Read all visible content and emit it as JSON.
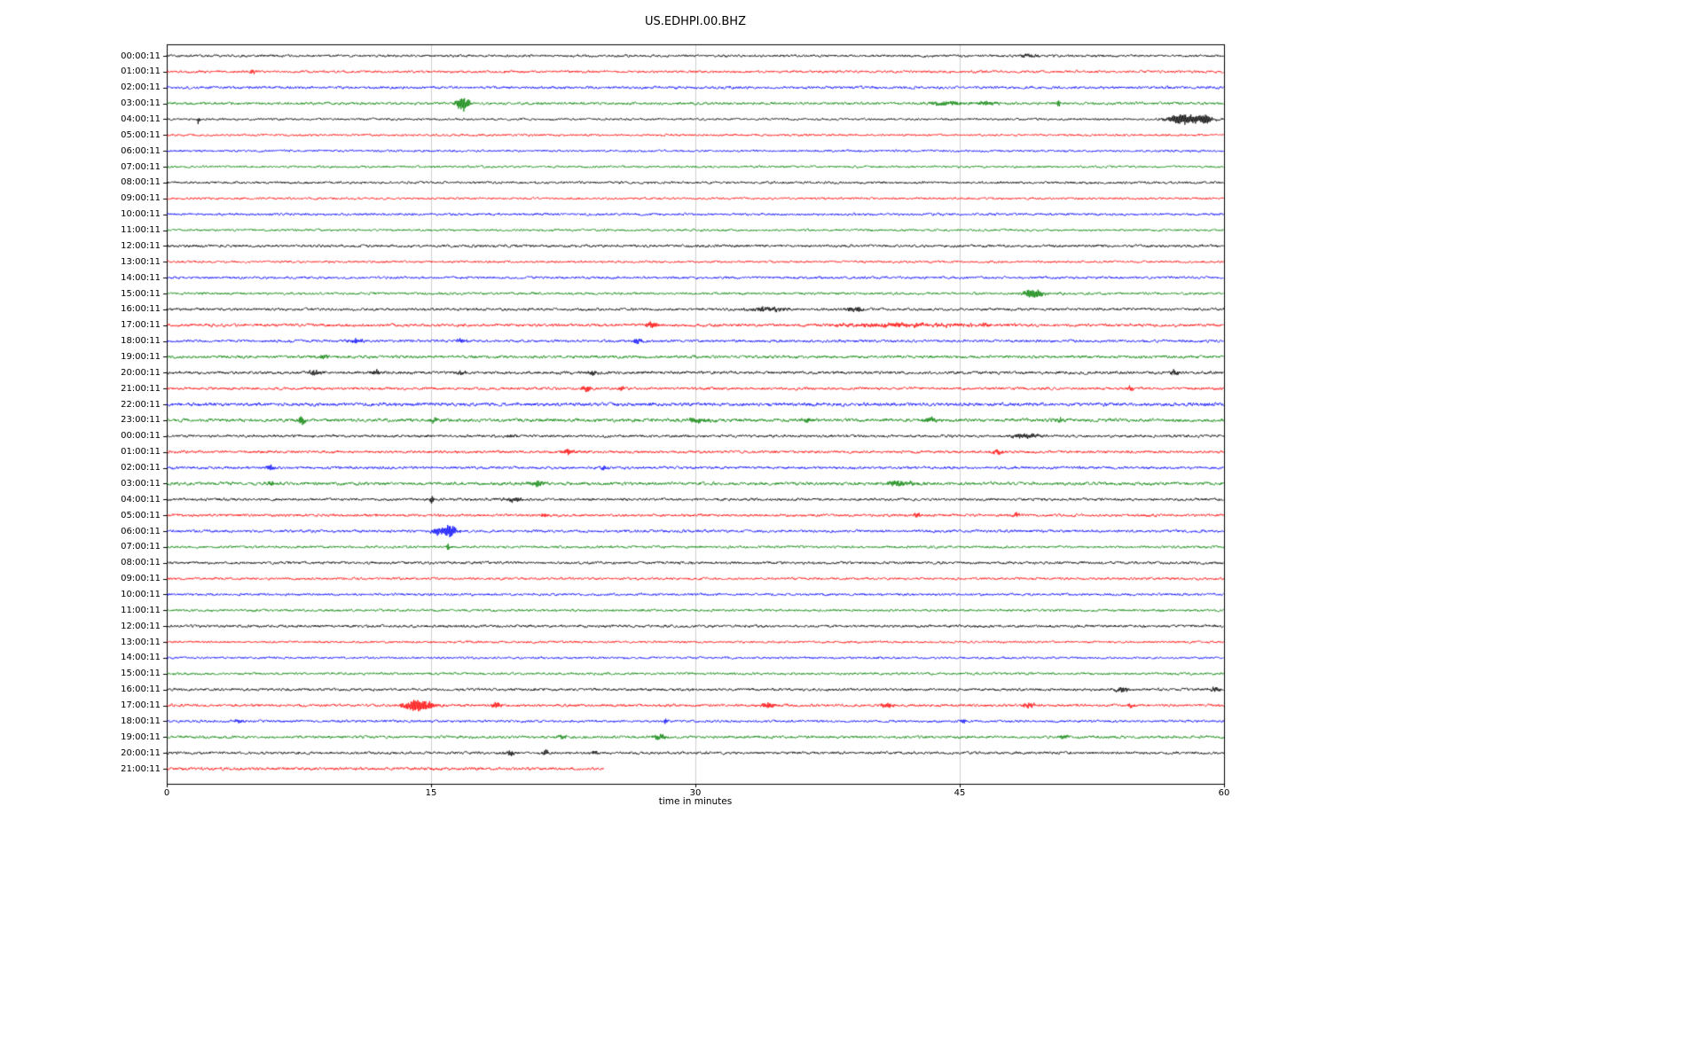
{
  "chart_data": {
    "type": "line",
    "title": "US.EDHPI.00.BHZ",
    "xlabel": "time in minutes",
    "x_range": [
      0,
      60
    ],
    "x_ticks": [
      0,
      15,
      30,
      45,
      60
    ],
    "x_tick_labels": [
      "0",
      "15",
      "30",
      "45",
      "60"
    ],
    "grid": "vertical gridlines at 15, 30, 45",
    "legend": "none",
    "trace_color_cycle": [
      "#000000",
      "#ff0000",
      "#0000ff",
      "#008000"
    ],
    "rows_note": "46 helicorder traces, one hour per line; events = [minute, amplitude_px, width_min]; xend marks early end of recording",
    "rows": [
      {
        "label": "00:00:11",
        "color": "#000000",
        "noise": 1.1,
        "events": [
          [
            48.9,
            2,
            0.3
          ]
        ]
      },
      {
        "label": "01:00:11",
        "color": "#ff0000",
        "noise": 1.1,
        "events": [
          [
            4.9,
            2.5,
            0.15
          ]
        ]
      },
      {
        "label": "02:00:11",
        "color": "#0000ff",
        "noise": 1.2,
        "events": []
      },
      {
        "label": "03:00:11",
        "color": "#008000",
        "noise": 1.2,
        "events": [
          [
            16.8,
            9,
            0.25
          ],
          [
            44.3,
            2.5,
            0.7
          ],
          [
            46.5,
            2,
            0.5
          ],
          [
            50.6,
            3.5,
            0.1
          ]
        ]
      },
      {
        "label": "04:00:11",
        "color": "#000000",
        "noise": 1.0,
        "events": [
          [
            1.8,
            5,
            0.05
          ],
          [
            57.8,
            6,
            0.7
          ],
          [
            59.0,
            4,
            0.3
          ]
        ]
      },
      {
        "label": "05:00:11",
        "color": "#ff0000",
        "noise": 1.0,
        "events": []
      },
      {
        "label": "06:00:11",
        "color": "#0000ff",
        "noise": 1.0,
        "events": []
      },
      {
        "label": "07:00:11",
        "color": "#008000",
        "noise": 1.0,
        "events": []
      },
      {
        "label": "08:00:11",
        "color": "#000000",
        "noise": 1.1,
        "events": []
      },
      {
        "label": "09:00:11",
        "color": "#ff0000",
        "noise": 1.0,
        "events": []
      },
      {
        "label": "10:00:11",
        "color": "#0000ff",
        "noise": 1.1,
        "events": []
      },
      {
        "label": "11:00:11",
        "color": "#008000",
        "noise": 1.0,
        "events": []
      },
      {
        "label": "12:00:11",
        "color": "#000000",
        "noise": 1.2,
        "events": []
      },
      {
        "label": "13:00:11",
        "color": "#ff0000",
        "noise": 1.0,
        "events": []
      },
      {
        "label": "14:00:11",
        "color": "#0000ff",
        "noise": 1.1,
        "events": []
      },
      {
        "label": "15:00:11",
        "color": "#008000",
        "noise": 1.1,
        "events": [
          [
            49.2,
            6,
            0.4
          ]
        ]
      },
      {
        "label": "16:00:11",
        "color": "#000000",
        "noise": 1.2,
        "events": [
          [
            34.1,
            2.5,
            0.8
          ],
          [
            39.0,
            3,
            0.4
          ]
        ]
      },
      {
        "label": "17:00:11",
        "color": "#ff0000",
        "noise": 1.3,
        "events": [
          [
            27.5,
            3,
            0.3
          ],
          [
            42.0,
            2,
            3.0
          ],
          [
            46.4,
            3,
            0.3
          ]
        ]
      },
      {
        "label": "18:00:11",
        "color": "#0000ff",
        "noise": 1.2,
        "events": [
          [
            10.7,
            2.5,
            0.3
          ],
          [
            16.7,
            2.5,
            0.2
          ],
          [
            26.7,
            3,
            0.2
          ]
        ]
      },
      {
        "label": "19:00:11",
        "color": "#008000",
        "noise": 1.3,
        "events": [
          [
            8.9,
            2,
            0.3
          ]
        ]
      },
      {
        "label": "20:00:11",
        "color": "#000000",
        "noise": 1.3,
        "events": [
          [
            8.4,
            2.5,
            0.3
          ],
          [
            11.9,
            3.5,
            0.2
          ],
          [
            16.7,
            2.5,
            0.2
          ],
          [
            24.2,
            2.5,
            0.2
          ],
          [
            57.2,
            2.5,
            0.2
          ]
        ]
      },
      {
        "label": "21:00:11",
        "color": "#ff0000",
        "noise": 1.2,
        "events": [
          [
            23.8,
            3.5,
            0.2
          ],
          [
            25.8,
            3.5,
            0.1
          ],
          [
            54.7,
            2.5,
            0.15
          ]
        ]
      },
      {
        "label": "22:00:11",
        "color": "#0000ff",
        "noise": 1.5,
        "events": []
      },
      {
        "label": "23:00:11",
        "color": "#008000",
        "noise": 1.5,
        "events": [
          [
            7.65,
            5,
            0.12
          ],
          [
            15.2,
            2.5,
            0.2
          ],
          [
            30.2,
            3,
            0.5
          ],
          [
            36.4,
            2.5,
            0.3
          ],
          [
            43.4,
            2.5,
            0.3
          ],
          [
            50.7,
            2.5,
            0.2
          ]
        ]
      },
      {
        "label": "00:00:11",
        "color": "#000000",
        "noise": 1.2,
        "events": [
          [
            19.5,
            2,
            0.3
          ],
          [
            48.8,
            3,
            0.6
          ]
        ]
      },
      {
        "label": "01:00:11",
        "color": "#ff0000",
        "noise": 1.2,
        "events": [
          [
            22.8,
            3,
            0.25
          ],
          [
            47.2,
            2.5,
            0.2
          ]
        ]
      },
      {
        "label": "02:00:11",
        "color": "#0000ff",
        "noise": 1.2,
        "events": [
          [
            5.9,
            3.5,
            0.15
          ],
          [
            24.8,
            2.5,
            0.15
          ]
        ]
      },
      {
        "label": "03:00:11",
        "color": "#008000",
        "noise": 1.4,
        "events": [
          [
            5.9,
            2.5,
            0.2
          ],
          [
            21.0,
            3.5,
            0.4
          ],
          [
            41.5,
            3,
            0.7
          ]
        ]
      },
      {
        "label": "04:00:11",
        "color": "#000000",
        "noise": 1.2,
        "events": [
          [
            15.05,
            8,
            0.06
          ],
          [
            19.7,
            2.5,
            0.4
          ]
        ]
      },
      {
        "label": "05:00:11",
        "color": "#ff0000",
        "noise": 1.2,
        "events": [
          [
            21.5,
            2.5,
            0.15
          ],
          [
            42.6,
            2.5,
            0.2
          ],
          [
            48.2,
            2.5,
            0.15
          ]
        ]
      },
      {
        "label": "06:00:11",
        "color": "#0000ff",
        "noise": 1.2,
        "events": [
          [
            15.3,
            4,
            0.2
          ],
          [
            16.0,
            7,
            0.35
          ]
        ]
      },
      {
        "label": "07:00:11",
        "color": "#008000",
        "noise": 1.1,
        "events": [
          [
            15.95,
            5,
            0.06
          ]
        ]
      },
      {
        "label": "08:00:11",
        "color": "#000000",
        "noise": 1.2,
        "events": []
      },
      {
        "label": "09:00:11",
        "color": "#ff0000",
        "noise": 1.1,
        "events": []
      },
      {
        "label": "10:00:11",
        "color": "#0000ff",
        "noise": 1.1,
        "events": []
      },
      {
        "label": "11:00:11",
        "color": "#008000",
        "noise": 1.1,
        "events": []
      },
      {
        "label": "12:00:11",
        "color": "#000000",
        "noise": 1.2,
        "events": []
      },
      {
        "label": "13:00:11",
        "color": "#ff0000",
        "noise": 1.0,
        "events": []
      },
      {
        "label": "14:00:11",
        "color": "#0000ff",
        "noise": 1.0,
        "events": []
      },
      {
        "label": "15:00:11",
        "color": "#008000",
        "noise": 1.1,
        "events": []
      },
      {
        "label": "16:00:11",
        "color": "#000000",
        "noise": 1.2,
        "events": [
          [
            54.2,
            3,
            0.3
          ],
          [
            59.5,
            3.5,
            0.2
          ]
        ]
      },
      {
        "label": "17:00:11",
        "color": "#ff0000",
        "noise": 1.2,
        "events": [
          [
            14.3,
            7,
            0.6
          ],
          [
            18.7,
            3.5,
            0.2
          ],
          [
            34.1,
            3,
            0.3
          ],
          [
            40.9,
            2.5,
            0.3
          ],
          [
            48.9,
            3,
            0.3
          ],
          [
            54.7,
            2.5,
            0.15
          ]
        ]
      },
      {
        "label": "18:00:11",
        "color": "#0000ff",
        "noise": 1.1,
        "events": [
          [
            4.1,
            2.5,
            0.15
          ],
          [
            28.3,
            2.5,
            0.1
          ],
          [
            45.2,
            2.5,
            0.15
          ]
        ]
      },
      {
        "label": "19:00:11",
        "color": "#008000",
        "noise": 1.2,
        "events": [
          [
            22.5,
            2.5,
            0.2
          ],
          [
            28.0,
            4,
            0.25
          ],
          [
            50.9,
            2.5,
            0.2
          ]
        ]
      },
      {
        "label": "20:00:11",
        "color": "#000000",
        "noise": 1.2,
        "events": [
          [
            19.5,
            3,
            0.2
          ],
          [
            21.5,
            2.5,
            0.15
          ],
          [
            24.3,
            2,
            0.2
          ]
        ]
      },
      {
        "label": "21:00:11",
        "color": "#ff0000",
        "noise": 1.3,
        "events": [],
        "xend": 24.8
      }
    ]
  }
}
